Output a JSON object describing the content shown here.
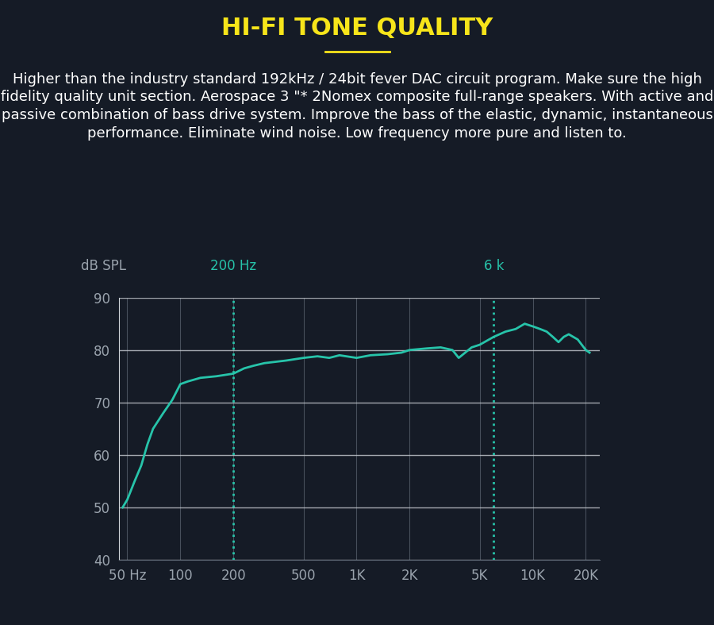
{
  "chart_data": {
    "type": "line",
    "title": "HI-FI TONE QUALITY",
    "subtitle": "Higher than the industry standard 192kHz / 24bit fever DAC circuit program. Make sure the high fidelity quality unit section. Aerospace 3 \"* 2Nomex composite full-range speakers. With active and passive combination of bass drive system. Improve the bass of the elastic, dynamic, instantaneous performance. Eliminate wind noise. Low frequency more pure and listen to.",
    "y_label": "dB SPL",
    "log": "x",
    "grid": true,
    "color": "#27c4aa",
    "x": [
      47,
      50,
      55,
      60,
      65,
      70,
      80,
      90,
      100,
      110,
      130,
      160,
      200,
      230,
      260,
      300,
      400,
      500,
      600,
      700,
      800,
      1000,
      1200,
      1500,
      1800,
      2000,
      2500,
      3000,
      3500,
      3800,
      4500,
      5000,
      6000,
      7000,
      8000,
      9000,
      10000,
      11000,
      12000,
      13000,
      14000,
      15000,
      16000,
      18000,
      20000,
      21000
    ],
    "values": [
      50,
      51.5,
      55,
      58,
      62,
      65,
      68,
      70.5,
      73.5,
      74,
      74.7,
      75,
      75.5,
      76.5,
      77,
      77.5,
      78,
      78.5,
      78.8,
      78.5,
      79,
      78.5,
      79,
      79.2,
      79.5,
      80,
      80.3,
      80.5,
      80,
      78.5,
      80.5,
      81,
      82.5,
      83.5,
      84,
      85,
      84.5,
      84,
      83.5,
      82.5,
      81.5,
      82.5,
      83,
      82,
      80,
      79.5
    ],
    "xlim": [
      45,
      24000
    ],
    "ylim": [
      40,
      90
    ],
    "xticks": [
      {
        "value": 50,
        "label": "50 Hz"
      },
      100,
      200,
      500,
      {
        "value": 1000,
        "label": "1K"
      },
      {
        "value": 2000,
        "label": "2K"
      },
      {
        "value": 5000,
        "label": "5K"
      },
      {
        "value": 10000,
        "label": "10K"
      },
      {
        "value": 20000,
        "label": "20K"
      }
    ],
    "yticks": [
      40,
      50,
      60,
      70,
      80,
      90
    ],
    "annotations": [
      {
        "x": 200,
        "label": "200 Hz"
      },
      {
        "x": 6000,
        "label": "6 k"
      }
    ]
  }
}
